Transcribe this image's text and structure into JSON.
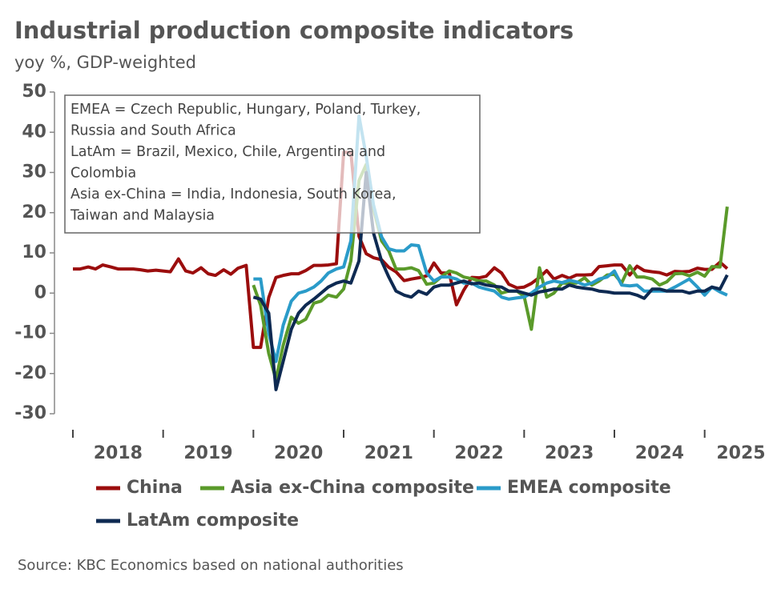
{
  "chart_data": {
    "type": "line",
    "title": "Industrial production composite indicators",
    "subtitle": "yoy %, GDP-weighted",
    "annotation": [
      "EMEA = Czech Republic, Hungary, Poland, Turkey,",
      "Russia and South Africa",
      "LatAm = Brazil, Mexico, Chile, Argentina and",
      "Colombia",
      "Asia ex-China = India, Indonesia, South Korea,",
      "Taiwan and Malaysia"
    ],
    "source": "Source: KBC Economics based on national authorities",
    "ylim": [
      -30,
      50
    ],
    "yticks": [
      -30,
      -20,
      -10,
      0,
      10,
      20,
      30,
      40,
      50
    ],
    "xlim": [
      2018,
      2025.42
    ],
    "xticks": [
      2018,
      2019,
      2020,
      2021,
      2022,
      2023,
      2024,
      2025
    ],
    "x": [
      2018,
      2018.08,
      2018.17,
      2018.25,
      2018.33,
      2018.42,
      2018.5,
      2018.58,
      2018.67,
      2018.75,
      2018.83,
      2018.92,
      2019,
      2019.08,
      2019.17,
      2019.25,
      2019.33,
      2019.42,
      2019.5,
      2019.58,
      2019.67,
      2019.75,
      2019.83,
      2019.92,
      2020,
      2020.08,
      2020.17,
      2020.25,
      2020.33,
      2020.42,
      2020.5,
      2020.58,
      2020.67,
      2020.75,
      2020.83,
      2020.92,
      2021,
      2021.08,
      2021.17,
      2021.25,
      2021.33,
      2021.42,
      2021.5,
      2021.58,
      2021.67,
      2021.75,
      2021.83,
      2021.92,
      2022,
      2022.08,
      2022.17,
      2022.25,
      2022.33,
      2022.42,
      2022.5,
      2022.58,
      2022.67,
      2022.75,
      2022.83,
      2022.92,
      2023,
      2023.08,
      2023.17,
      2023.25,
      2023.33,
      2023.42,
      2023.5,
      2023.58,
      2023.67,
      2023.75,
      2023.83,
      2023.92,
      2024,
      2024.08,
      2024.17,
      2024.25,
      2024.33,
      2024.42,
      2024.5,
      2024.58,
      2024.67,
      2024.75,
      2024.83,
      2024.92,
      2025,
      2025.08,
      2025.17,
      2025.25
    ],
    "series": [
      {
        "name": "China",
        "color": "#9b0d0d",
        "values": [
          6,
          6,
          6.5,
          6,
          7,
          6.5,
          6,
          6,
          6,
          5.8,
          5.5,
          5.7,
          5.5,
          5.3,
          8.5,
          5.5,
          5,
          6.3,
          4.8,
          4.4,
          5.8,
          4.7,
          6.2,
          6.9,
          -13.5,
          -13.5,
          -1.1,
          3.9,
          4.4,
          4.8,
          4.8,
          5.6,
          6.9,
          6.9,
          7,
          7.3,
          35,
          35,
          14.1,
          9.8,
          8.8,
          8.3,
          6.4,
          5.3,
          3.1,
          3.5,
          3.8,
          4.3,
          7.5,
          5,
          5,
          -2.9,
          0.7,
          3.9,
          3.8,
          4.2,
          6.3,
          5,
          2.2,
          1.3,
          1.5,
          2.4,
          3.9,
          5.6,
          3.5,
          4.4,
          3.7,
          4.5,
          4.5,
          4.6,
          6.6,
          6.8,
          7,
          7,
          4.5,
          6.7,
          5.6,
          5.3,
          5.1,
          4.5,
          5.4,
          5.3,
          5.4,
          6.2,
          5.9,
          5.9,
          7.7,
          6.1
        ]
      },
      {
        "name": "Asia ex-China composite",
        "color": "#5a9a2a",
        "values": [
          null,
          null,
          null,
          null,
          null,
          null,
          null,
          null,
          null,
          null,
          null,
          null,
          null,
          null,
          null,
          null,
          null,
          null,
          null,
          null,
          null,
          null,
          null,
          null,
          2,
          -3,
          -15,
          -21.5,
          -13,
          -6,
          -7.5,
          -6.5,
          -2.5,
          -2,
          -0.5,
          -1,
          1,
          8,
          28,
          32,
          21,
          13,
          10.5,
          6,
          6,
          6.3,
          5.6,
          2.2,
          2.5,
          4,
          5.5,
          5,
          4,
          3.6,
          3,
          3,
          2,
          0,
          0.5,
          0.5,
          -0.8,
          -9,
          6.3,
          -1,
          0,
          2.5,
          2.4,
          2.5,
          3.8,
          2,
          3,
          4.5,
          4.7,
          2.5,
          6.8,
          4,
          4,
          3.5,
          2,
          2.8,
          4.8,
          4.9,
          4.3,
          5.2,
          4.2,
          6.6,
          6.5,
          21.5
        ]
      },
      {
        "name": "EMEA composite",
        "color": "#2a9bc9",
        "values": [
          null,
          null,
          null,
          null,
          null,
          null,
          null,
          null,
          null,
          null,
          null,
          null,
          null,
          null,
          null,
          null,
          null,
          null,
          null,
          null,
          null,
          null,
          null,
          null,
          3.5,
          3.5,
          -10,
          -17,
          -8,
          -2,
          0,
          0.5,
          1.5,
          3,
          5,
          6,
          6.5,
          13,
          44,
          34,
          22,
          14,
          11,
          10.5,
          10.5,
          12,
          11.8,
          5,
          3,
          4,
          4,
          3.5,
          2.5,
          2.5,
          1.5,
          1,
          0.5,
          -1,
          -1.5,
          -1.2,
          -1,
          0,
          1.5,
          2.5,
          3,
          2.6,
          3.2,
          2.8,
          2,
          2.5,
          3.5,
          4,
          5.5,
          2,
          1.8,
          2,
          0.5,
          0.5,
          0.5,
          0.5,
          1.5,
          2.5,
          3.5,
          1.5,
          -0.5,
          1.5,
          0.3,
          -0.5
        ]
      },
      {
        "name": "LatAm composite",
        "color": "#0e2a52",
        "values": [
          null,
          null,
          null,
          null,
          null,
          null,
          null,
          null,
          null,
          null,
          null,
          null,
          null,
          null,
          null,
          null,
          null,
          null,
          null,
          null,
          null,
          null,
          null,
          null,
          -1,
          -1.5,
          -5,
          -24,
          -17,
          -9,
          -5,
          -3,
          -1.5,
          0,
          1.5,
          2.5,
          3,
          2.5,
          8,
          30,
          15,
          8,
          4,
          0.5,
          -0.5,
          -1,
          0.5,
          -0.3,
          1.5,
          2,
          2,
          2.5,
          3,
          2.3,
          2.5,
          2,
          1.7,
          1.5,
          0.5,
          0.5,
          0,
          -0.5,
          0.3,
          0.6,
          1,
          1,
          2,
          1.5,
          1.2,
          1,
          0.5,
          0.3,
          0,
          0,
          0,
          -0.5,
          -1.3,
          1,
          1,
          0.5,
          0.5,
          0.5,
          0,
          0.5,
          0.5,
          1.5,
          1,
          4.5
        ]
      }
    ]
  }
}
